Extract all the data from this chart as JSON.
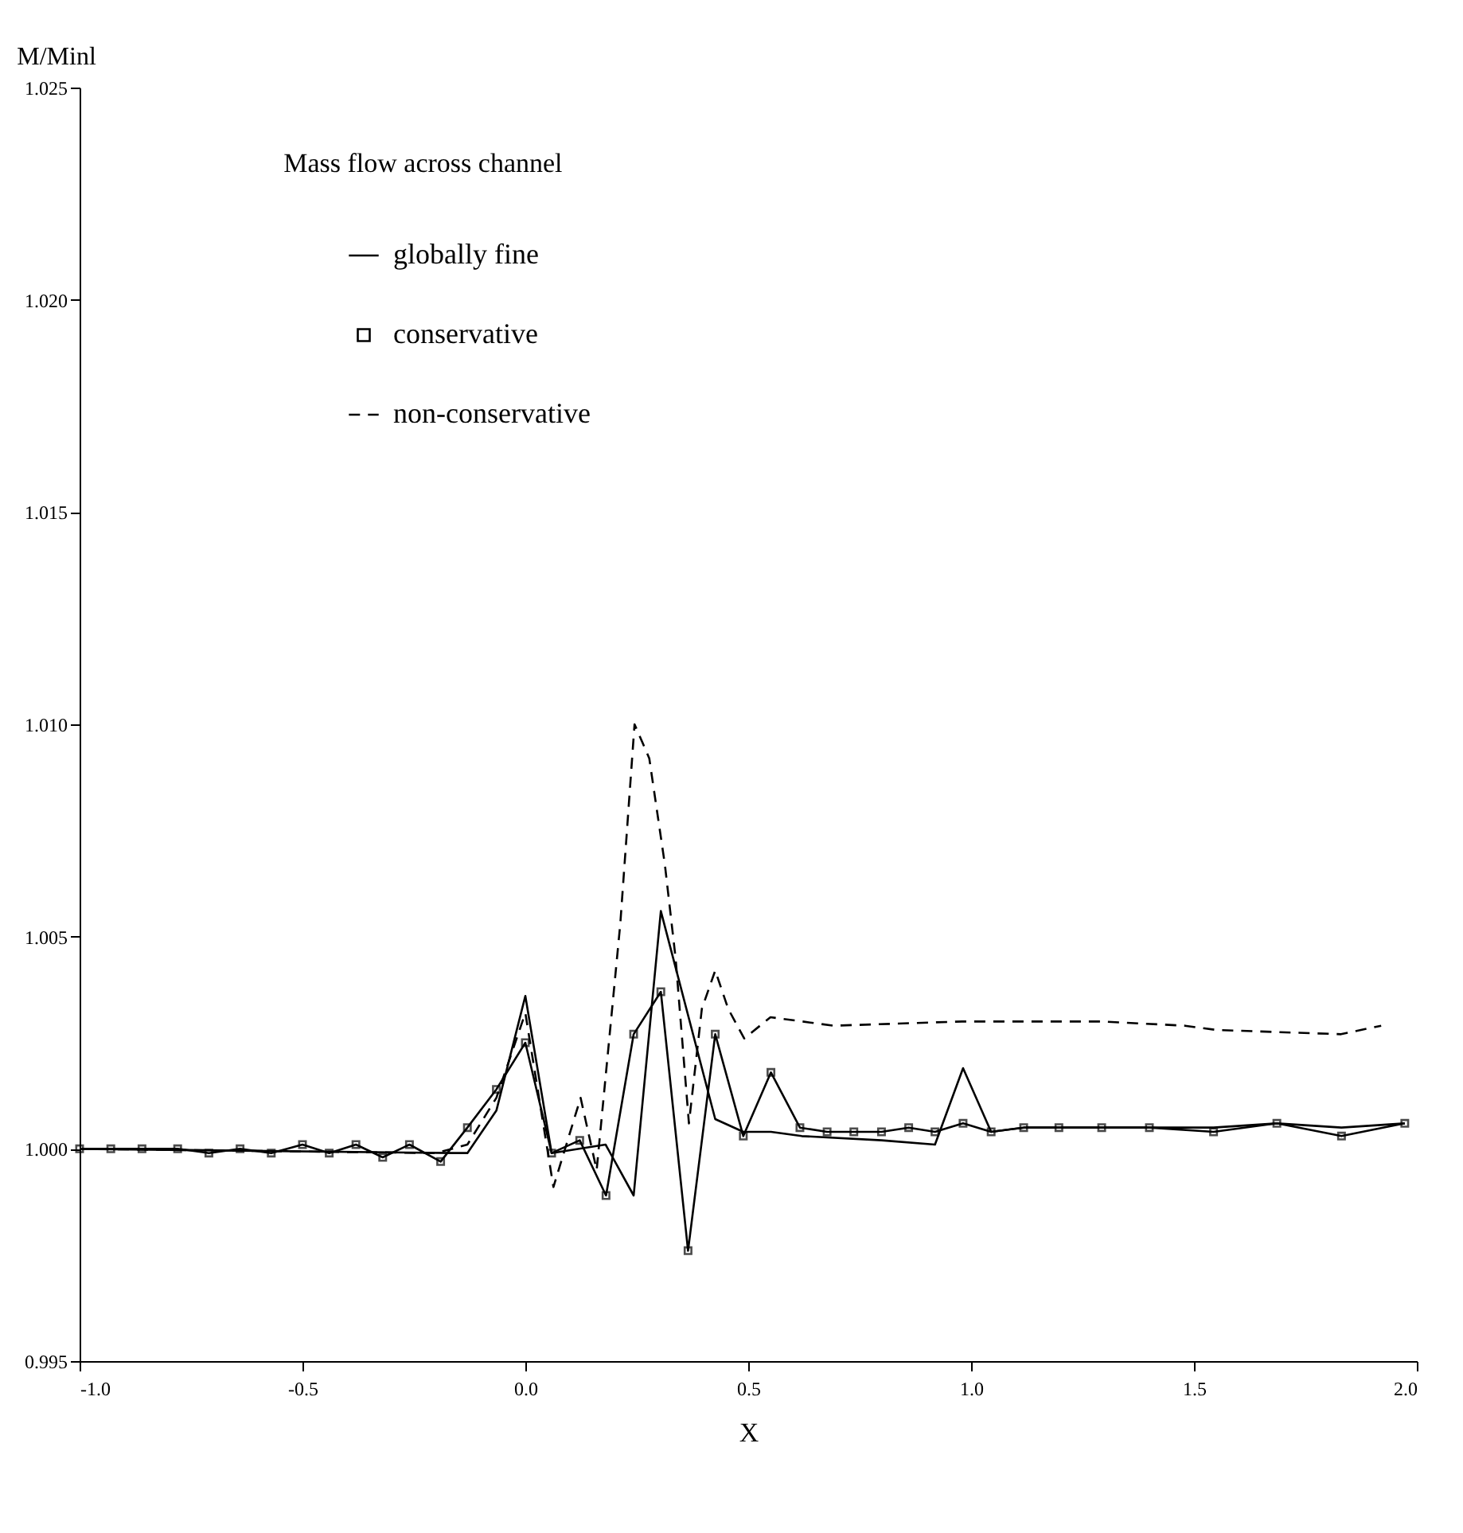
{
  "chart_data": {
    "type": "line",
    "title": "Mass flow across channel",
    "xlabel": "X",
    "ylabel": "M/Minl",
    "xlim": [
      -1.0,
      2.0
    ],
    "ylim": [
      0.995,
      1.025
    ],
    "xticks": [
      {
        "value": -1.0,
        "label": "-1.0"
      },
      {
        "value": -0.5,
        "label": "-0.5"
      },
      {
        "value": 0.0,
        "label": "0.0"
      },
      {
        "value": 0.5,
        "label": "0.5"
      },
      {
        "value": 1.0,
        "label": "1.0"
      },
      {
        "value": 1.5,
        "label": "1.5"
      },
      {
        "value": 2.0,
        "label": "2.0"
      }
    ],
    "yticks": [
      {
        "value": 0.995,
        "label": "0.995"
      },
      {
        "value": 1.0,
        "label": "1.000"
      },
      {
        "value": 1.005,
        "label": "1.005"
      },
      {
        "value": 1.01,
        "label": "1.010"
      },
      {
        "value": 1.015,
        "label": "1.015"
      },
      {
        "value": 1.02,
        "label": "1.020"
      },
      {
        "value": 1.025,
        "label": "1.025"
      }
    ],
    "grid": false,
    "legend": "top left",
    "series": [
      {
        "name": "globally fine",
        "color": "#000000",
        "type": "line",
        "line_style": "solid",
        "marker": "none",
        "x": [
          -1.0,
          -0.16,
          -0.13,
          -0.065,
          0.0,
          0.059,
          0.18,
          0.243,
          0.304,
          0.426,
          0.489,
          0.551,
          0.62,
          0.799,
          0.919,
          0.982,
          1.045,
          1.118,
          1.2,
          1.4,
          1.544,
          1.686,
          1.831,
          1.973
        ],
        "values": [
          1.0,
          0.9999,
          0.9999,
          1.0009,
          1.0036,
          0.9999,
          1.0001,
          0.9989,
          1.0056,
          1.0007,
          1.0004,
          1.0004,
          1.0003,
          1.0002,
          1.0001,
          1.0019,
          1.0004,
          1.0005,
          1.0005,
          1.0005,
          1.0005,
          1.0006,
          1.0005,
          1.0006
        ]
      },
      {
        "name": "conservative",
        "color": "#000000",
        "type": "line",
        "line_style": "solid",
        "marker": "square",
        "x": [
          -1.0,
          -0.93,
          -0.86,
          -0.78,
          -0.71,
          -0.64,
          -0.57,
          -0.5,
          -0.44,
          -0.38,
          -0.32,
          -0.26,
          -0.19,
          -0.13,
          -0.065,
          0.0,
          0.059,
          0.122,
          0.181,
          0.243,
          0.304,
          0.365,
          0.426,
          0.489,
          0.551,
          0.616,
          0.677,
          0.737,
          0.799,
          0.86,
          0.919,
          0.982,
          1.045,
          1.118,
          1.197,
          1.293,
          1.4,
          1.544,
          1.686,
          1.831,
          1.973
        ],
        "values": [
          1.0,
          1.0,
          1.0,
          1.0,
          0.9999,
          1.0,
          0.9999,
          1.0001,
          0.9999,
          1.0001,
          0.9998,
          1.0001,
          0.9997,
          1.0005,
          1.0014,
          1.0025,
          0.9999,
          1.0002,
          0.9989,
          1.0027,
          1.0037,
          0.9976,
          1.0027,
          1.0003,
          1.0018,
          1.0005,
          1.0004,
          1.0004,
          1.0004,
          1.0005,
          1.0004,
          1.0006,
          1.0004,
          1.0005,
          1.0005,
          1.0005,
          1.0005,
          1.0004,
          1.0006,
          1.0003,
          1.0006
        ]
      },
      {
        "name": "non-conservative",
        "color": "#000000",
        "type": "line",
        "line_style": "dashed",
        "marker": "none",
        "x": [
          -1.0,
          -0.2,
          -0.13,
          -0.065,
          0.0,
          0.063,
          0.124,
          0.16,
          0.213,
          0.245,
          0.278,
          0.313,
          0.337,
          0.367,
          0.396,
          0.426,
          0.455,
          0.491,
          0.55,
          0.692,
          0.98,
          1.29,
          1.48,
          1.55,
          1.83,
          1.92
        ],
        "values": [
          1.0,
          0.9999,
          1.0001,
          1.0012,
          1.0032,
          0.9991,
          1.0012,
          0.9995,
          1.0053,
          1.01,
          1.0092,
          1.0067,
          1.0045,
          1.0006,
          1.0033,
          1.0042,
          1.0033,
          1.0026,
          1.0031,
          1.0029,
          1.003,
          1.003,
          1.0029,
          1.0028,
          1.0027,
          1.0029
        ]
      }
    ]
  }
}
